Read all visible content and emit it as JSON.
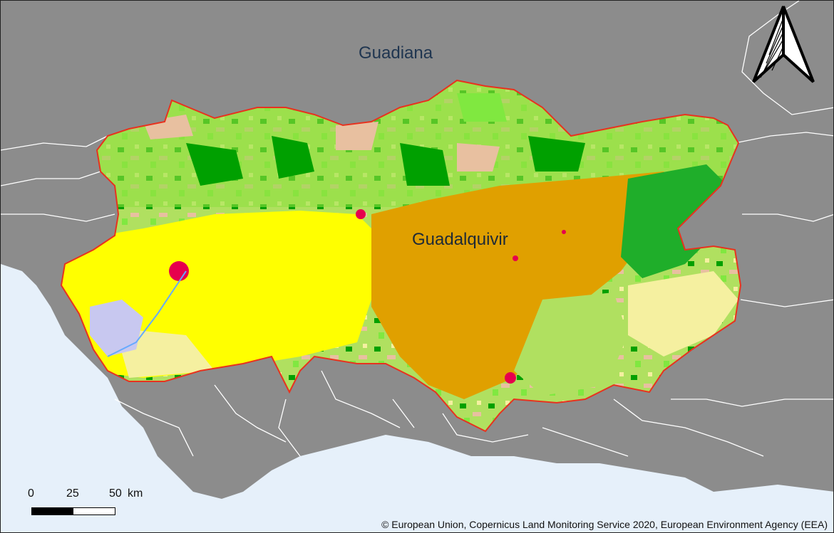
{
  "map": {
    "labels": {
      "guadiana": "Guadiana",
      "guadalquivir": "Guadalquivir"
    },
    "scale_bar": {
      "tick_0": "0",
      "tick_25": "25",
      "tick_50": "50",
      "unit": "km"
    },
    "attribution": "© European Union, Copernicus Land Monitoring Service 2020, European Environment Agency (EEA)",
    "colors": {
      "sea": "#e6f0fa",
      "land_outside": "#8c8c8c",
      "boundary_lines": "#ffffff",
      "basin_outline": "#e8321e",
      "olive_groves": "#e0a000",
      "arable_irrigated": "#ffff00",
      "pasture_light": "#f5f0a0",
      "forest_green": "#00a000",
      "grassland": "#80e840",
      "shrub": "#e8c0a0",
      "urban": "#e6004d",
      "wetland": "#c8c8f0"
    },
    "icons": [
      "north-arrow-icon",
      "scale-bar-icon"
    ]
  }
}
